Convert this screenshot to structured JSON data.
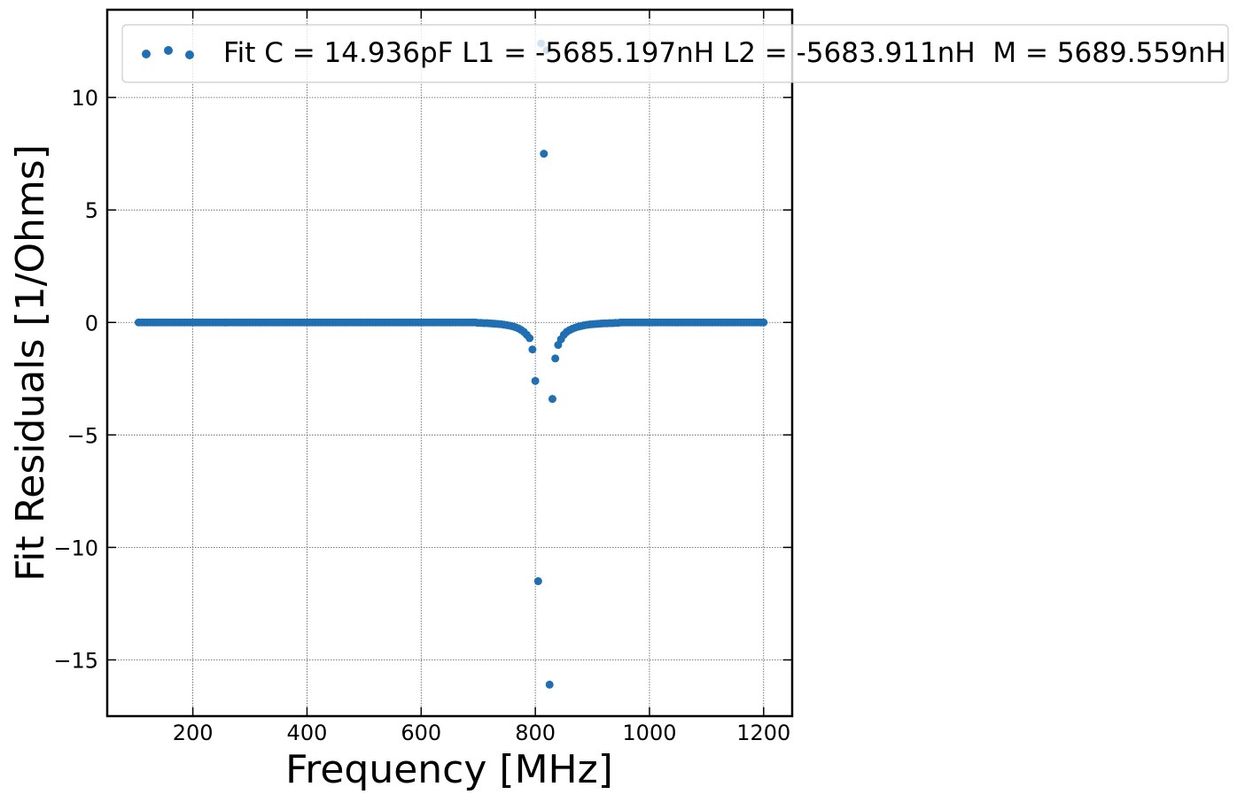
{
  "chart_data": {
    "type": "scatter",
    "xlabel": "Frequency [MHz]",
    "ylabel": "Fit Residuals [1/Ohms]",
    "xlim": [
      50,
      1250
    ],
    "ylim": [
      -17.5,
      13.9
    ],
    "xticks": [
      200,
      400,
      600,
      800,
      1000,
      1200
    ],
    "yticks": [
      -15,
      -10,
      -5,
      0,
      5,
      10
    ],
    "xtick_labels": [
      "200",
      "400",
      "600",
      "800",
      "1000",
      "1200"
    ],
    "ytick_labels": [
      "−15",
      "−10",
      "−5",
      "0",
      "5",
      "10"
    ],
    "grid": true,
    "legend_position": "top",
    "marker_color": "#1f6fb2",
    "series": [
      {
        "name": "Fit C = 14.936pF L1 = -5685.197nH L2 = -5683.911nH  M = 5689.559nH",
        "baseline": {
          "x_start": 105,
          "x_end": 1200,
          "step": 5,
          "y": 0.0
        },
        "points": [
          [
            700,
            -0.02
          ],
          [
            705,
            -0.02
          ],
          [
            710,
            -0.03
          ],
          [
            715,
            -0.03
          ],
          [
            720,
            -0.04
          ],
          [
            725,
            -0.05
          ],
          [
            730,
            -0.06
          ],
          [
            735,
            -0.07
          ],
          [
            740,
            -0.08
          ],
          [
            745,
            -0.1
          ],
          [
            750,
            -0.12
          ],
          [
            755,
            -0.14
          ],
          [
            760,
            -0.17
          ],
          [
            765,
            -0.21
          ],
          [
            770,
            -0.26
          ],
          [
            775,
            -0.33
          ],
          [
            780,
            -0.42
          ],
          [
            785,
            -0.55
          ],
          [
            790,
            -0.7
          ],
          [
            795,
            -1.2
          ],
          [
            800,
            -2.6
          ],
          [
            805,
            -11.5
          ],
          [
            810,
            12.4
          ],
          [
            815,
            7.5
          ],
          [
            820,
            12.1
          ],
          [
            825,
            -16.1
          ],
          [
            830,
            -3.4
          ],
          [
            835,
            -1.6
          ],
          [
            840,
            -1.0
          ],
          [
            845,
            -0.75
          ],
          [
            850,
            -0.55
          ],
          [
            855,
            -0.42
          ],
          [
            860,
            -0.34
          ],
          [
            865,
            -0.28
          ],
          [
            870,
            -0.23
          ],
          [
            875,
            -0.19
          ],
          [
            880,
            -0.16
          ],
          [
            885,
            -0.13
          ],
          [
            890,
            -0.11
          ],
          [
            895,
            -0.09
          ],
          [
            900,
            -0.08
          ],
          [
            905,
            -0.07
          ],
          [
            910,
            -0.06
          ],
          [
            915,
            -0.05
          ],
          [
            920,
            -0.04
          ],
          [
            925,
            -0.04
          ],
          [
            930,
            -0.03
          ],
          [
            935,
            -0.03
          ],
          [
            940,
            -0.02
          ],
          [
            945,
            -0.02
          ]
        ]
      }
    ]
  }
}
